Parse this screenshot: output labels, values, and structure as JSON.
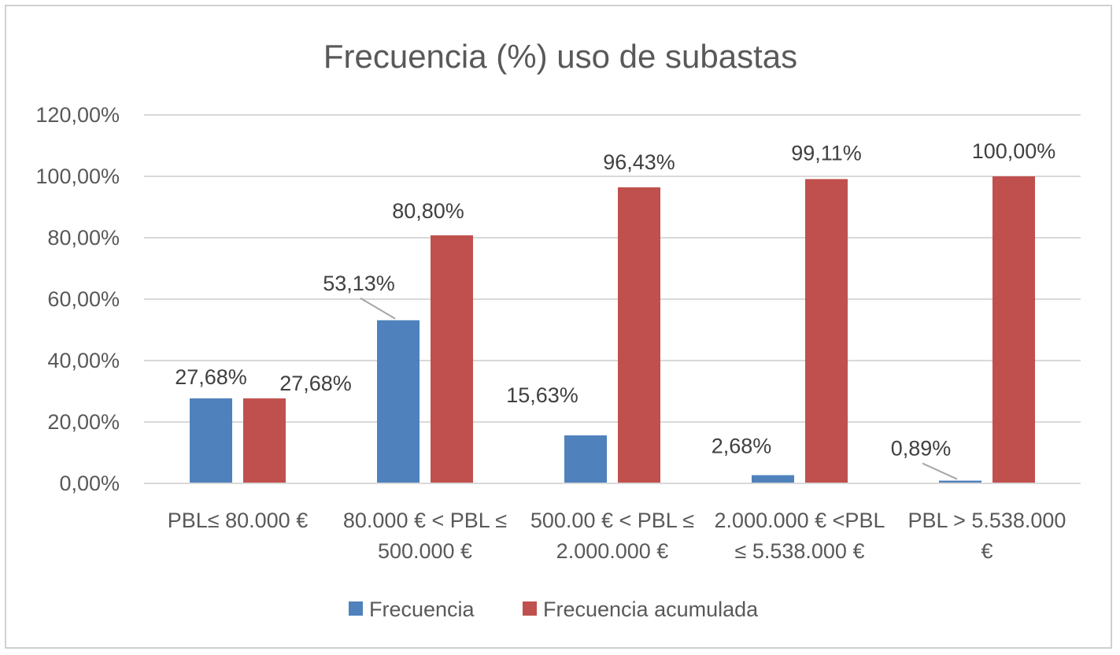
{
  "chart_data": {
    "type": "bar",
    "title": "Frecuencia (%) uso de subastas",
    "categories": [
      [
        "PBL≤ 80.000 €"
      ],
      [
        "80.000 € < PBL ≤",
        "500.000 €"
      ],
      [
        "500.00 € < PBL ≤",
        "2.000.000 €"
      ],
      [
        "2.000.000 € <PBL",
        "≤ 5.538.000 €"
      ],
      [
        "PBL > 5.538.000",
        "€"
      ]
    ],
    "series": [
      {
        "name": "Frecuencia",
        "color": "#4f81bd",
        "values": [
          27.68,
          53.13,
          15.63,
          2.68,
          0.89
        ],
        "labels": [
          "27,68%",
          "53,13%",
          "15,63%",
          "2,68%",
          "0,89%"
        ]
      },
      {
        "name": "Frecuencia acumulada",
        "color": "#c0504d",
        "values": [
          27.68,
          80.8,
          96.43,
          99.11,
          100.0
        ],
        "labels": [
          "27,68%",
          "80,80%",
          "96,43%",
          "99,11%",
          "100,00%"
        ]
      }
    ],
    "yticks": [
      "0,00%",
      "20,00%",
      "40,00%",
      "60,00%",
      "80,00%",
      "100,00%",
      "120,00%"
    ],
    "ylim": [
      0,
      120
    ],
    "grid": true,
    "legend_position": "bottom"
  }
}
